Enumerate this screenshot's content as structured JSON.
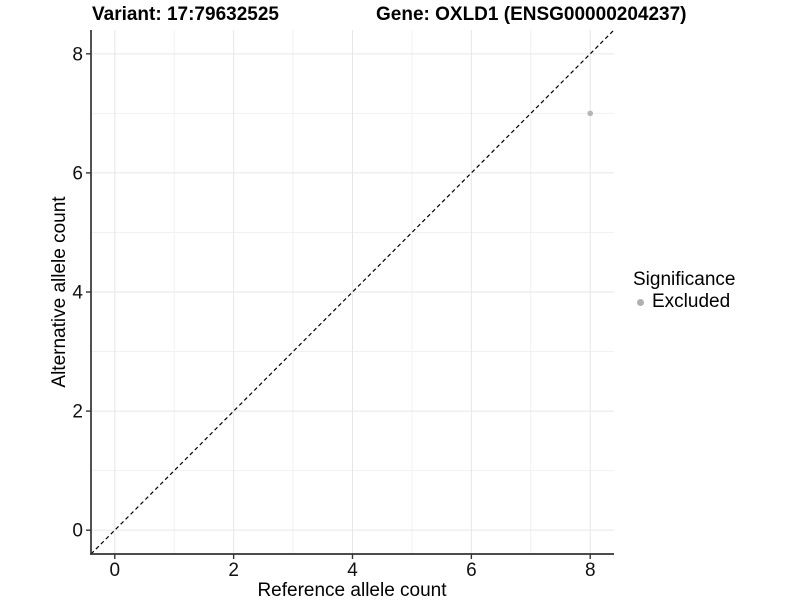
{
  "chart_data": {
    "type": "scatter",
    "titles": [
      "Variant: 17:79632525",
      "Gene: OXLD1 (ENSG00000204237)"
    ],
    "xlabel": "Reference allele count",
    "ylabel": "Alternative allele count",
    "xlim": [
      -0.4,
      8.4
    ],
    "ylim": [
      -0.4,
      8.4
    ],
    "x_ticks": [
      0,
      2,
      4,
      6,
      8
    ],
    "y_ticks": [
      0,
      2,
      4,
      6,
      8
    ],
    "x_minor_ticks": [
      1,
      3,
      5,
      7
    ],
    "y_minor_ticks": [
      1,
      3,
      5,
      7
    ],
    "grid": "major+minor",
    "identity_line": {
      "style": "dashed",
      "from": [
        -0.4,
        -0.4
      ],
      "to": [
        8.4,
        8.4
      ],
      "color": "#000000"
    },
    "series": [
      {
        "name": "Excluded",
        "color": "#b5b5b5",
        "points": [
          [
            8,
            7
          ]
        ]
      }
    ],
    "legend": {
      "title": "Significance",
      "position": "right",
      "items": [
        {
          "label": "Excluded",
          "color": "#b0b0b0"
        }
      ]
    },
    "colors": {
      "axis_line": "#333333",
      "tick_mark": "#333333",
      "tick_label": "#111111",
      "grid_major": "#e6e6e6",
      "grid_minor": "#f1f1f1",
      "background": "#ffffff"
    }
  }
}
